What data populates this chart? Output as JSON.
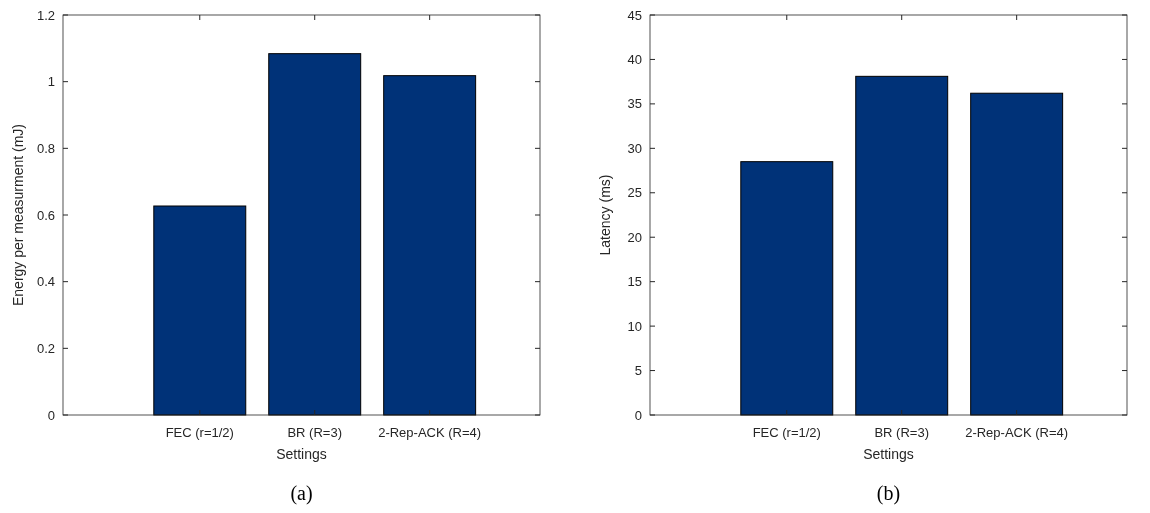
{
  "chart_data": [
    {
      "type": "bar",
      "categories": [
        "FEC (r=1/2)",
        "BR (R=3)",
        "2-Rep-ACK (R=4)"
      ],
      "values": [
        0.627,
        1.084,
        1.018
      ],
      "color": "#003278",
      "xlabel": "Settings",
      "ylabel": "Energy per measurment (mJ)",
      "ylim": [
        0,
        1.2
      ],
      "yticks": [
        0,
        0.2,
        0.4,
        0.6,
        0.8,
        1,
        1.2
      ],
      "annotations": [
        "(a)"
      ]
    },
    {
      "type": "bar",
      "categories": [
        "FEC (r=1/2)",
        "BR (R=3)",
        "2-Rep-ACK (R=4)"
      ],
      "values": [
        28.5,
        38.1,
        36.2
      ],
      "color": "#003278",
      "xlabel": "Settings",
      "ylabel": "Latency (ms)",
      "ylim": [
        0,
        45
      ],
      "yticks": [
        0,
        5,
        10,
        15,
        20,
        25,
        30,
        35,
        40,
        45
      ],
      "annotations": [
        "(b)"
      ]
    }
  ]
}
